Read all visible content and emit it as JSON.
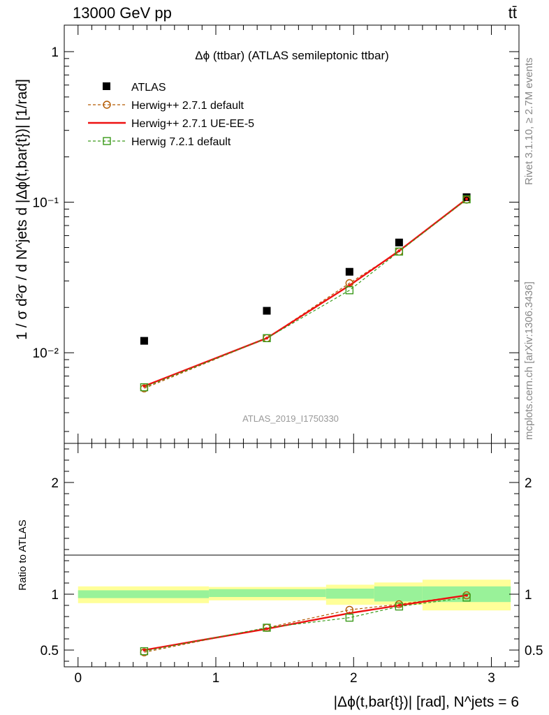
{
  "header": {
    "energy_label": "13000 GeV pp",
    "process_label": "tt̄"
  },
  "side_labels": {
    "rivet": "Rivet 3.1.10, ≥ 2.7M events",
    "mcplots": "mcplots.cern.ch [arXiv:1306.3436]"
  },
  "watermark": "ATLAS_2019_I1750330",
  "colors": {
    "atlas": "#000000",
    "herwig_default": "#b35900",
    "herwig_ueee5": "#ee1111",
    "herwig_721": "#3a9a1a",
    "band_inner": "#99f299",
    "band_outer": "#ffff99"
  },
  "chart_data": [
    {
      "type": "scatter",
      "title": "Δϕ (ttbar) (ATLAS semileptonic ttbar)",
      "ylabel": "1 / σ d²σ / d N^jets d |Δϕ(t,bar{t})| [1/rad]",
      "xlabel": "",
      "yscale": "log",
      "ylim": [
        0.0025,
        1.5
      ],
      "xlim": [
        -0.1,
        3.2
      ],
      "yticks": [
        {
          "value": 0.01,
          "label": "10⁻²"
        },
        {
          "value": 0.1,
          "label": "10⁻¹"
        },
        {
          "value": 1,
          "label": "1"
        }
      ],
      "legend_position": "top-left",
      "x": [
        0.48,
        1.37,
        1.97,
        2.33,
        2.82
      ],
      "series": [
        {
          "name": "ATLAS",
          "marker": "square",
          "values": [
            0.012,
            0.019,
            0.0345,
            0.054,
            0.108
          ]
        },
        {
          "name": "Herwig++ 2.7.1 default",
          "marker": "circle",
          "line": "dashed",
          "values": [
            0.0058,
            0.0125,
            0.029,
            0.047,
            0.104
          ]
        },
        {
          "name": "Herwig++ 2.7.1 UE-EE-5",
          "marker": "none",
          "line": "solid",
          "values": [
            0.006,
            0.0125,
            0.028,
            0.0475,
            0.105
          ]
        },
        {
          "name": "Herwig 7.2.1 default",
          "marker": "square-open",
          "line": "dashed",
          "values": [
            0.0059,
            0.0125,
            0.026,
            0.047,
            0.1045
          ]
        }
      ]
    },
    {
      "type": "line",
      "ylabel": "Ratio to ATLAS",
      "xlabel": "|Δϕ(t,bar{t})| [rad], N^jets = 6",
      "ylim": [
        0.35,
        2.35
      ],
      "xlim": [
        -0.1,
        3.2
      ],
      "xticks": [
        0,
        1,
        2,
        3
      ],
      "yticks": [
        0.5,
        1,
        2
      ],
      "x": [
        0.48,
        1.37,
        1.97,
        2.33,
        2.82
      ],
      "bins": [
        {
          "lo": 0.0,
          "hi": 0.95,
          "inner": [
            0.965,
            1.035
          ],
          "outer": [
            0.92,
            1.07
          ]
        },
        {
          "lo": 0.95,
          "hi": 1.8,
          "inner": [
            0.975,
            1.045
          ],
          "outer": [
            0.945,
            1.065
          ]
        },
        {
          "lo": 1.8,
          "hi": 2.15,
          "inner": [
            0.96,
            1.05
          ],
          "outer": [
            0.905,
            1.085
          ]
        },
        {
          "lo": 2.15,
          "hi": 2.5,
          "inner": [
            0.935,
            1.07
          ],
          "outer": [
            0.905,
            1.105
          ]
        },
        {
          "lo": 2.5,
          "hi": 3.14,
          "inner": [
            0.93,
            1.07
          ],
          "outer": [
            0.855,
            1.13
          ]
        }
      ],
      "series": [
        {
          "name": "Herwig++ 2.7.1 default",
          "marker": "circle",
          "line": "dashed",
          "values": [
            0.48,
            0.7,
            0.86,
            0.91,
            0.99
          ]
        },
        {
          "name": "Herwig++ 2.7.1 UE-EE-5",
          "marker": "none",
          "line": "solid",
          "values": [
            0.5,
            0.69,
            0.83,
            0.9,
            0.99
          ]
        },
        {
          "name": "Herwig 7.2.1 default",
          "marker": "square-open",
          "line": "dashed",
          "values": [
            0.49,
            0.7,
            0.79,
            0.89,
            0.97
          ]
        }
      ]
    }
  ]
}
